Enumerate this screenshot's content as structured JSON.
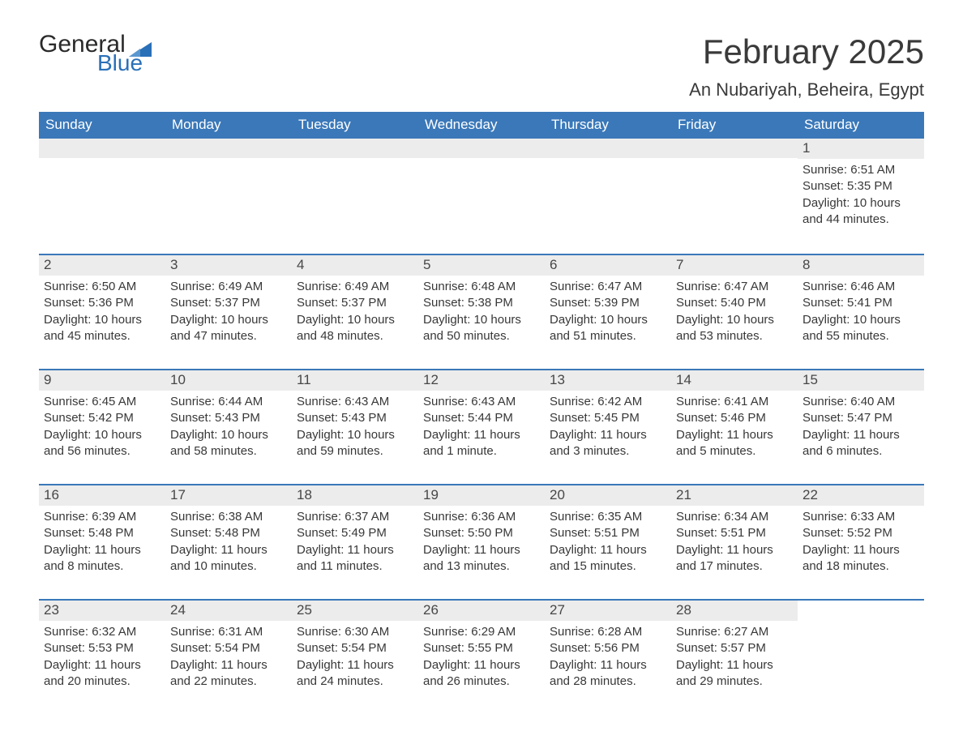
{
  "brand": {
    "word1": "General",
    "word2": "Blue",
    "accent_color": "#2a70b8",
    "text_color": "#2a2a2a"
  },
  "header": {
    "month_title": "February 2025",
    "location": "An Nubariyah, Beheira, Egypt"
  },
  "style": {
    "header_bg": "#3a78b9",
    "header_text": "#ffffff",
    "row_border": "#3a78b9",
    "daynum_bg": "#ececec",
    "body_text": "#383838",
    "title_color": "#3a3a3a",
    "page_bg": "#ffffff",
    "dow_fontsize": 17,
    "title_fontsize": 42,
    "location_fontsize": 22,
    "body_fontsize": 15,
    "columns": 7
  },
  "days_of_week": [
    "Sunday",
    "Monday",
    "Tuesday",
    "Wednesday",
    "Thursday",
    "Friday",
    "Saturday"
  ],
  "labels": {
    "sunrise_prefix": "Sunrise: ",
    "sunset_prefix": "Sunset: ",
    "daylight_prefix": "Daylight: "
  },
  "weeks": [
    [
      {
        "blank": true
      },
      {
        "blank": true
      },
      {
        "blank": true
      },
      {
        "blank": true
      },
      {
        "blank": true
      },
      {
        "blank": true
      },
      {
        "day": "1",
        "sunrise": "6:51 AM",
        "sunset": "5:35 PM",
        "daylight": "10 hours and 44 minutes."
      }
    ],
    [
      {
        "day": "2",
        "sunrise": "6:50 AM",
        "sunset": "5:36 PM",
        "daylight": "10 hours and 45 minutes."
      },
      {
        "day": "3",
        "sunrise": "6:49 AM",
        "sunset": "5:37 PM",
        "daylight": "10 hours and 47 minutes."
      },
      {
        "day": "4",
        "sunrise": "6:49 AM",
        "sunset": "5:37 PM",
        "daylight": "10 hours and 48 minutes."
      },
      {
        "day": "5",
        "sunrise": "6:48 AM",
        "sunset": "5:38 PM",
        "daylight": "10 hours and 50 minutes."
      },
      {
        "day": "6",
        "sunrise": "6:47 AM",
        "sunset": "5:39 PM",
        "daylight": "10 hours and 51 minutes."
      },
      {
        "day": "7",
        "sunrise": "6:47 AM",
        "sunset": "5:40 PM",
        "daylight": "10 hours and 53 minutes."
      },
      {
        "day": "8",
        "sunrise": "6:46 AM",
        "sunset": "5:41 PM",
        "daylight": "10 hours and 55 minutes."
      }
    ],
    [
      {
        "day": "9",
        "sunrise": "6:45 AM",
        "sunset": "5:42 PM",
        "daylight": "10 hours and 56 minutes."
      },
      {
        "day": "10",
        "sunrise": "6:44 AM",
        "sunset": "5:43 PM",
        "daylight": "10 hours and 58 minutes."
      },
      {
        "day": "11",
        "sunrise": "6:43 AM",
        "sunset": "5:43 PM",
        "daylight": "10 hours and 59 minutes."
      },
      {
        "day": "12",
        "sunrise": "6:43 AM",
        "sunset": "5:44 PM",
        "daylight": "11 hours and 1 minute."
      },
      {
        "day": "13",
        "sunrise": "6:42 AM",
        "sunset": "5:45 PM",
        "daylight": "11 hours and 3 minutes."
      },
      {
        "day": "14",
        "sunrise": "6:41 AM",
        "sunset": "5:46 PM",
        "daylight": "11 hours and 5 minutes."
      },
      {
        "day": "15",
        "sunrise": "6:40 AM",
        "sunset": "5:47 PM",
        "daylight": "11 hours and 6 minutes."
      }
    ],
    [
      {
        "day": "16",
        "sunrise": "6:39 AM",
        "sunset": "5:48 PM",
        "daylight": "11 hours and 8 minutes."
      },
      {
        "day": "17",
        "sunrise": "6:38 AM",
        "sunset": "5:48 PM",
        "daylight": "11 hours and 10 minutes."
      },
      {
        "day": "18",
        "sunrise": "6:37 AM",
        "sunset": "5:49 PM",
        "daylight": "11 hours and 11 minutes."
      },
      {
        "day": "19",
        "sunrise": "6:36 AM",
        "sunset": "5:50 PM",
        "daylight": "11 hours and 13 minutes."
      },
      {
        "day": "20",
        "sunrise": "6:35 AM",
        "sunset": "5:51 PM",
        "daylight": "11 hours and 15 minutes."
      },
      {
        "day": "21",
        "sunrise": "6:34 AM",
        "sunset": "5:51 PM",
        "daylight": "11 hours and 17 minutes."
      },
      {
        "day": "22",
        "sunrise": "6:33 AM",
        "sunset": "5:52 PM",
        "daylight": "11 hours and 18 minutes."
      }
    ],
    [
      {
        "day": "23",
        "sunrise": "6:32 AM",
        "sunset": "5:53 PM",
        "daylight": "11 hours and 20 minutes."
      },
      {
        "day": "24",
        "sunrise": "6:31 AM",
        "sunset": "5:54 PM",
        "daylight": "11 hours and 22 minutes."
      },
      {
        "day": "25",
        "sunrise": "6:30 AM",
        "sunset": "5:54 PM",
        "daylight": "11 hours and 24 minutes."
      },
      {
        "day": "26",
        "sunrise": "6:29 AM",
        "sunset": "5:55 PM",
        "daylight": "11 hours and 26 minutes."
      },
      {
        "day": "27",
        "sunrise": "6:28 AM",
        "sunset": "5:56 PM",
        "daylight": "11 hours and 28 minutes."
      },
      {
        "day": "28",
        "sunrise": "6:27 AM",
        "sunset": "5:57 PM",
        "daylight": "11 hours and 29 minutes."
      },
      {
        "blank": true,
        "no_band": true
      }
    ]
  ]
}
